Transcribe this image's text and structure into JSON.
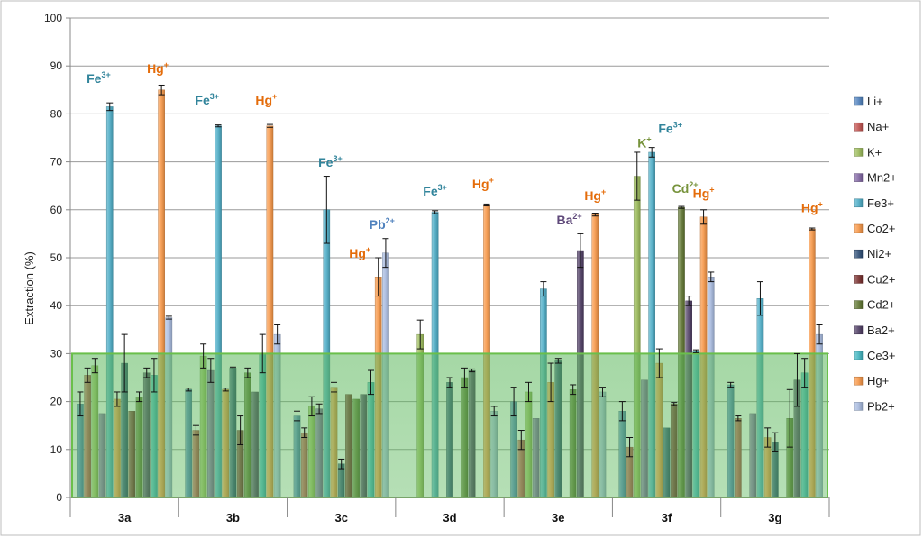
{
  "chart_data": {
    "type": "bar",
    "title": "",
    "xlabel": "",
    "ylabel": "Extraction (%)",
    "ylim": [
      0,
      100
    ],
    "yticks": [
      "0",
      "10",
      "20",
      "30",
      "40",
      "50",
      "60",
      "70",
      "80",
      "90",
      "100"
    ],
    "grid": true,
    "legend_position": "right",
    "categories": [
      "3a",
      "3b",
      "3c",
      "3d",
      "3e",
      "3f",
      "3g"
    ],
    "threshold_band": {
      "from": 0,
      "to": 30,
      "color": "#5cb85c"
    },
    "series": [
      {
        "name": "Li+",
        "color": "#4f81bd",
        "values": [
          19.5,
          22.5,
          17.0,
          0,
          20.0,
          18.0,
          23.5
        ],
        "errors": [
          2.5,
          0.3,
          1.0,
          0,
          3.0,
          2.0,
          0.5
        ]
      },
      {
        "name": "Na+",
        "color": "#c0504d",
        "values": [
          25.5,
          14.0,
          13.5,
          0,
          12.0,
          10.5,
          16.5
        ],
        "errors": [
          1.5,
          1.0,
          1.0,
          0,
          2.0,
          2.0,
          0.5
        ]
      },
      {
        "name": "K+",
        "color": "#9bbb59",
        "values": [
          27.5,
          29.5,
          19.0,
          34.0,
          22.0,
          67.0,
          0
        ],
        "errors": [
          1.5,
          2.5,
          2.0,
          3.0,
          2.0,
          5.0,
          0
        ]
      },
      {
        "name": "Mn2+",
        "color": "#8064a2",
        "values": [
          17.5,
          26.5,
          18.5,
          0,
          16.5,
          24.5,
          17.5
        ],
        "errors": [
          0,
          2.5,
          1.0,
          0,
          0,
          0,
          0
        ]
      },
      {
        "name": "Fe3+",
        "color": "#4bacc6",
        "values": [
          81.5,
          77.5,
          60.0,
          59.5,
          43.5,
          72.0,
          41.5
        ],
        "errors": [
          0.8,
          0.2,
          7.0,
          0.3,
          1.5,
          1.0,
          3.5
        ]
      },
      {
        "name": "Co2+",
        "color": "#f79646",
        "values": [
          20.5,
          22.5,
          23.0,
          0,
          24.0,
          28.0,
          12.5
        ],
        "errors": [
          1.5,
          0.3,
          1.0,
          0,
          4.0,
          3.0,
          2.0
        ]
      },
      {
        "name": "Ni2+",
        "color": "#2c4d75",
        "values": [
          28.0,
          27.0,
          7.0,
          24.0,
          28.5,
          14.5,
          11.5
        ],
        "errors": [
          6.0,
          0.2,
          1.0,
          1.0,
          0.5,
          0,
          2.0
        ]
      },
      {
        "name": "Cu2+",
        "color": "#772c2a",
        "values": [
          18.0,
          14.0,
          21.5,
          0,
          0,
          19.5,
          0
        ],
        "errors": [
          0,
          3.0,
          0,
          0,
          0,
          0.3,
          0
        ]
      },
      {
        "name": "Cd2+",
        "color": "#5f7530",
        "values": [
          21.0,
          26.0,
          20.5,
          25.0,
          22.5,
          60.5,
          16.5
        ],
        "errors": [
          1.0,
          1.0,
          0,
          2.0,
          1.0,
          0.2,
          6.0
        ]
      },
      {
        "name": "Ba2+",
        "color": "#4d3b62",
        "values": [
          26.0,
          22.0,
          21.5,
          26.5,
          51.5,
          41.0,
          24.5
        ],
        "errors": [
          1.0,
          0,
          0,
          0.3,
          3.5,
          1.0,
          5.5
        ]
      },
      {
        "name": "Ce3+",
        "color": "#3fb4bf",
        "values": [
          25.5,
          30.0,
          24.0,
          0,
          0,
          30.5,
          26.0
        ],
        "errors": [
          3.5,
          4.0,
          2.5,
          0,
          0,
          0.3,
          3.0
        ]
      },
      {
        "name": "Hg+",
        "color": "#f79646",
        "values": [
          85.0,
          77.5,
          46.0,
          61.0,
          59.0,
          58.5,
          56.0
        ],
        "errors": [
          1.0,
          0.3,
          4.0,
          0.2,
          0.3,
          1.5,
          0.2
        ]
      },
      {
        "name": "Pb2+",
        "color": "#a6b9de",
        "values": [
          37.5,
          34.0,
          51.0,
          18.0,
          22.0,
          46.0,
          34.0
        ],
        "errors": [
          0.3,
          2.0,
          3.0,
          1.0,
          1.0,
          1.0,
          2.0
        ]
      }
    ],
    "annotations": [
      {
        "base": "Fe",
        "sup": "3+",
        "category": "3a",
        "value": 86.5,
        "offset": -3.5,
        "color": "#31849b"
      },
      {
        "base": "Hg",
        "sup": "+",
        "category": "3a",
        "value": 88.5,
        "offset": 4.5,
        "color": "#e46c0a"
      },
      {
        "base": "Fe",
        "sup": "3+",
        "category": "3b",
        "value": 82.0,
        "offset": -3.5,
        "color": "#31849b"
      },
      {
        "base": "Hg",
        "sup": "+",
        "category": "3b",
        "value": 82.0,
        "offset": 4.5,
        "color": "#e46c0a"
      },
      {
        "base": "Fe",
        "sup": "3+",
        "category": "3c",
        "value": 69.0,
        "offset": -1.5,
        "color": "#31849b"
      },
      {
        "base": "Hg",
        "sup": "+",
        "category": "3c",
        "value": 50.0,
        "offset": 2.5,
        "color": "#e46c0a"
      },
      {
        "base": "Pb",
        "sup": "2+",
        "category": "3c",
        "value": 56.0,
        "offset": 5.5,
        "color": "#4f81bd"
      },
      {
        "base": "Fe",
        "sup": "3+",
        "category": "3d",
        "value": 63.0,
        "offset": -2.0,
        "color": "#31849b"
      },
      {
        "base": "Hg",
        "sup": "+",
        "category": "3d",
        "value": 64.5,
        "offset": 4.5,
        "color": "#e46c0a"
      },
      {
        "base": "Ba",
        "sup": "2+",
        "category": "3e",
        "value": 57.0,
        "offset": 1.5,
        "color": "#5f497a"
      },
      {
        "base": "Hg",
        "sup": "+",
        "category": "3e",
        "value": 62.0,
        "offset": 5.0,
        "color": "#e46c0a"
      },
      {
        "base": "K",
        "sup": "+",
        "category": "3f",
        "value": 73.0,
        "offset": -3.0,
        "color": "#77933c"
      },
      {
        "base": "Fe",
        "sup": "3+",
        "category": "3f",
        "value": 76.0,
        "offset": 0.5,
        "color": "#31849b"
      },
      {
        "base": "Cd",
        "sup": "2+",
        "category": "3f",
        "value": 63.5,
        "offset": 2.5,
        "color": "#77933c"
      },
      {
        "base": "Hg",
        "sup": "+",
        "category": "3f",
        "value": 62.5,
        "offset": 5.0,
        "color": "#e46c0a"
      },
      {
        "base": "Hg",
        "sup": "+",
        "category": "3g",
        "value": 59.5,
        "offset": 5.0,
        "color": "#e46c0a"
      }
    ]
  }
}
